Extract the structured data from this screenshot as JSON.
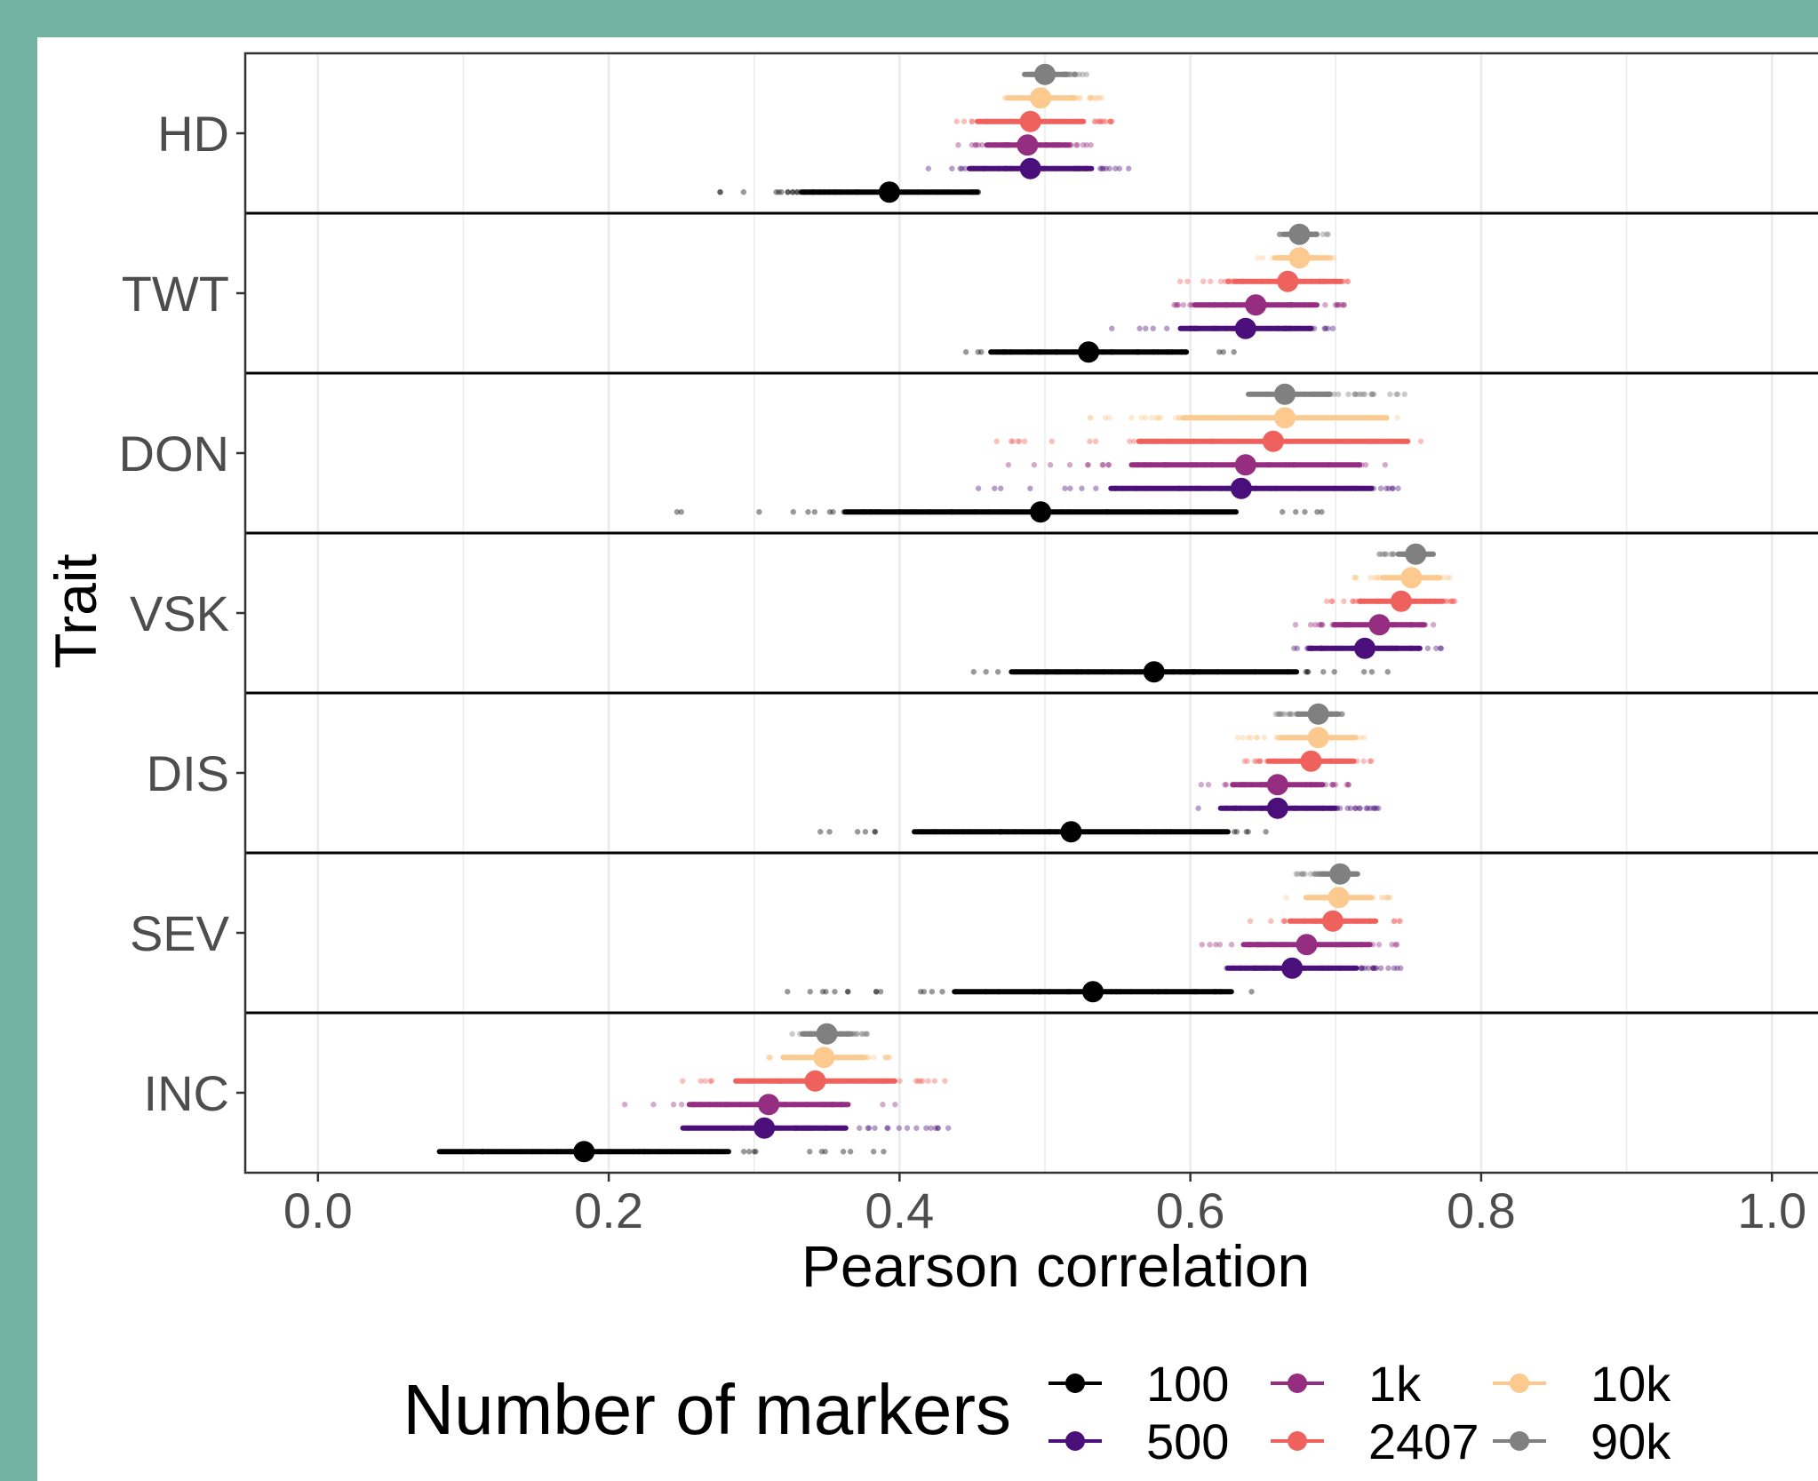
{
  "colors": {
    "frame_border": "#72b3a3",
    "background": "#ffffff",
    "grid": "#ebebeb",
    "panel_border": "#333333",
    "separator": "#000000"
  },
  "chart_data": {
    "type": "scatter",
    "xlabel": "Pearson correlation",
    "ylabel": "Trait",
    "xlim": [
      -0.05,
      1.05
    ],
    "x_ticks": [
      "0.0",
      "0.2",
      "0.4",
      "0.6",
      "0.8",
      "1.0"
    ],
    "x_tick_values": [
      0.0,
      0.2,
      0.4,
      0.6,
      0.8,
      1.0
    ],
    "grid": true,
    "legend": {
      "title": "Number of markers",
      "placement": "bottom",
      "entries": [
        {
          "label": "100",
          "color": "#000000"
        },
        {
          "label": "500",
          "color": "#4a0f7a"
        },
        {
          "label": "1k",
          "color": "#952d80"
        },
        {
          "label": "2407",
          "color": "#ef615c"
        },
        {
          "label": "10k",
          "color": "#fcc98e"
        },
        {
          "label": "90k",
          "color": "#808080"
        }
      ]
    },
    "categories": [
      "HD",
      "TWT",
      "DON",
      "VSK",
      "DIS",
      "SEV",
      "INC"
    ],
    "series": [
      {
        "name": "90k",
        "color": "#808080",
        "means": [
          0.5,
          0.675,
          0.665,
          0.755,
          0.688,
          0.703,
          0.35
        ],
        "ranges": [
          [
            0.48,
            0.53
          ],
          [
            0.655,
            0.695
          ],
          [
            0.64,
            0.75
          ],
          [
            0.725,
            0.768
          ],
          [
            0.655,
            0.705
          ],
          [
            0.67,
            0.715
          ],
          [
            0.32,
            0.38
          ]
        ]
      },
      {
        "name": "10k",
        "color": "#fcc98e",
        "means": [
          0.497,
          0.675,
          0.665,
          0.752,
          0.688,
          0.702,
          0.348
        ],
        "ranges": [
          [
            0.46,
            0.54
          ],
          [
            0.64,
            0.7
          ],
          [
            0.5,
            0.75
          ],
          [
            0.71,
            0.78
          ],
          [
            0.63,
            0.72
          ],
          [
            0.66,
            0.74
          ],
          [
            0.3,
            0.4
          ]
        ]
      },
      {
        "name": "2407",
        "color": "#ef615c",
        "means": [
          0.49,
          0.667,
          0.657,
          0.745,
          0.683,
          0.698,
          0.342
        ],
        "ranges": [
          [
            0.42,
            0.55
          ],
          [
            0.585,
            0.715
          ],
          [
            0.45,
            0.78
          ],
          [
            0.68,
            0.782
          ],
          [
            0.62,
            0.725
          ],
          [
            0.64,
            0.745
          ],
          [
            0.24,
            0.435
          ]
        ]
      },
      {
        "name": "1k",
        "color": "#952d80",
        "means": [
          0.488,
          0.645,
          0.638,
          0.73,
          0.66,
          0.68,
          0.31
        ],
        "ranges": [
          [
            0.435,
            0.535
          ],
          [
            0.56,
            0.71
          ],
          [
            0.46,
            0.74
          ],
          [
            0.66,
            0.77
          ],
          [
            0.6,
            0.71
          ],
          [
            0.59,
            0.745
          ],
          [
            0.205,
            0.4
          ]
        ]
      },
      {
        "name": "500",
        "color": "#4a0f7a",
        "means": [
          0.49,
          0.638,
          0.635,
          0.72,
          0.66,
          0.67,
          0.307
        ],
        "ranges": [
          [
            0.415,
            0.565
          ],
          [
            0.54,
            0.7
          ],
          [
            0.43,
            0.75
          ],
          [
            0.64,
            0.775
          ],
          [
            0.59,
            0.73
          ],
          [
            0.59,
            0.748
          ],
          [
            0.235,
            0.435
          ]
        ]
      },
      {
        "name": "100",
        "color": "#000000",
        "means": [
          0.393,
          0.53,
          0.497,
          0.575,
          0.518,
          0.533,
          0.183
        ],
        "ranges": [
          [
            0.245,
            0.46
          ],
          [
            0.39,
            0.63
          ],
          [
            0.22,
            0.7
          ],
          [
            0.395,
            0.745
          ],
          [
            0.275,
            0.66
          ],
          [
            0.31,
            0.65
          ],
          [
            0.045,
            0.4
          ]
        ]
      }
    ]
  }
}
